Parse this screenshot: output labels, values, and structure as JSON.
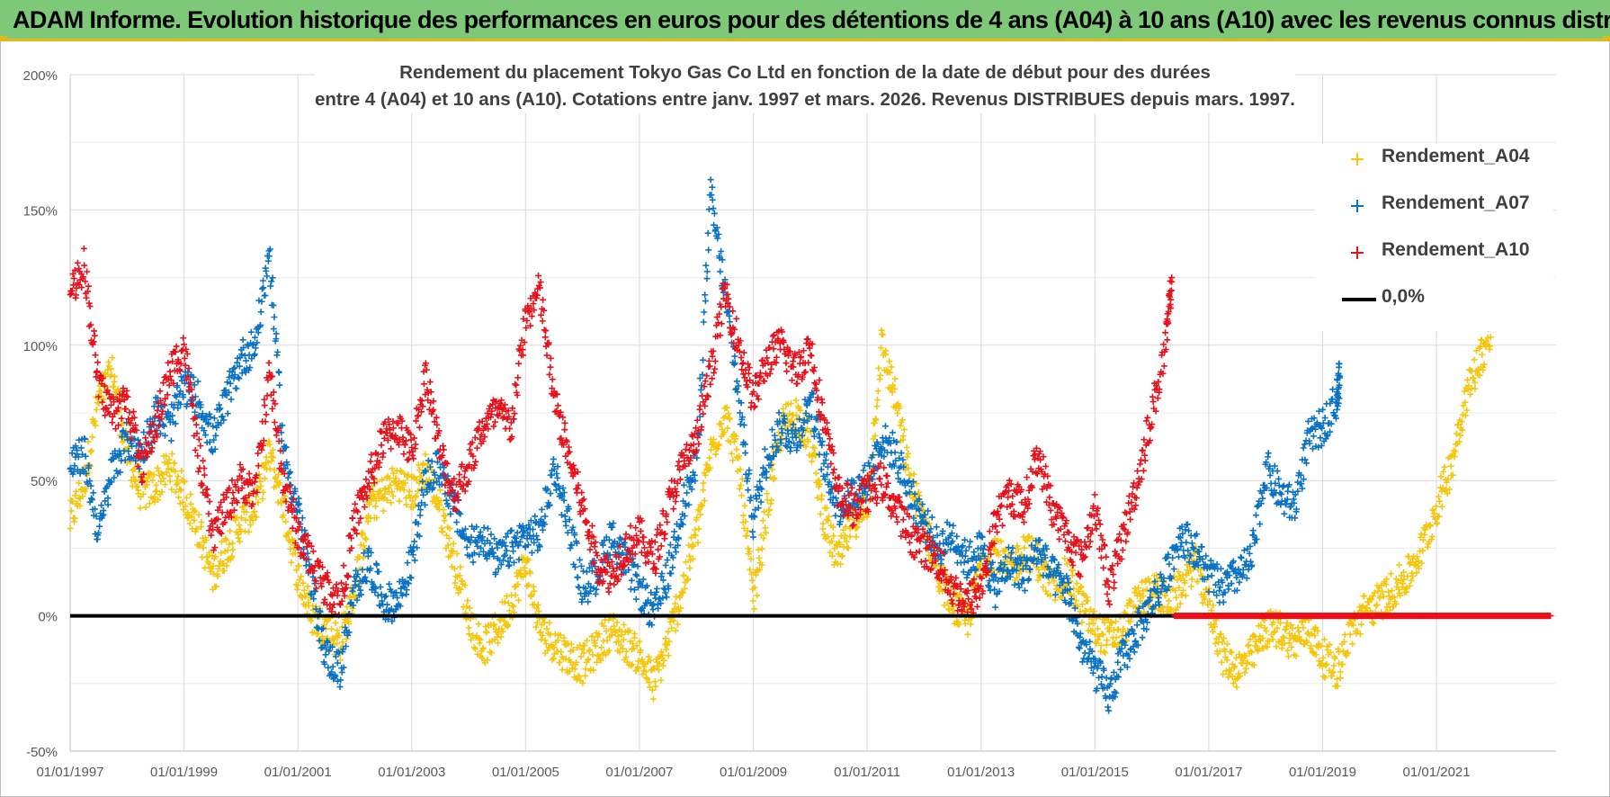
{
  "header": {
    "title": "ADAM Informe. Evolution historique des performances en euros pour des détentions de 4 ans (A04) à 10 ans (A10) avec les revenus connus distribués"
  },
  "colors": {
    "banner": "#7dc978",
    "banner_accent": "#e0b91a",
    "A04": "#f5c60c",
    "A07": "#0a72c4",
    "A10": "#e8101a",
    "zero_line": "#000000",
    "grid": "#d9d9d9"
  },
  "chart_data": {
    "type": "scatter",
    "title_lines": [
      "Rendement du placement Tokyo Gas Co Ltd en fonction de la date de début pour des durées",
      "entre 4 (A04) et 10 ans (A10).  Cotations entre janv. 1997 et mars. 2026. Revenus DISTRIBUES depuis mars. 1997."
    ],
    "xlabel": "",
    "ylabel": "",
    "x_range": [
      "1997-01-01",
      "2023-02-01"
    ],
    "ylim": [
      -50,
      200
    ],
    "y_ticks": [
      {
        "value": 200,
        "label": "200%"
      },
      {
        "value": 150,
        "label": "150%"
      },
      {
        "value": 100,
        "label": "100%"
      },
      {
        "value": 50,
        "label": "50%"
      },
      {
        "value": 0,
        "label": "0%"
      },
      {
        "value": -50,
        "label": "-50%"
      }
    ],
    "x_ticks": [
      {
        "year": 1997,
        "label": "01/01/1997"
      },
      {
        "year": 1999,
        "label": "01/01/1999"
      },
      {
        "year": 2001,
        "label": "01/01/2001"
      },
      {
        "year": 2003,
        "label": "01/01/2003"
      },
      {
        "year": 2005,
        "label": "01/01/2005"
      },
      {
        "year": 2007,
        "label": "01/01/2007"
      },
      {
        "year": 2009,
        "label": "01/01/2009"
      },
      {
        "year": 2011,
        "label": "01/01/2011"
      },
      {
        "year": 2013,
        "label": "01/01/2013"
      },
      {
        "year": 2015,
        "label": "01/01/2015"
      },
      {
        "year": 2017,
        "label": "01/01/2017"
      },
      {
        "year": 2019,
        "label": "01/01/2019"
      },
      {
        "year": 2021,
        "label": "01/01/2021"
      }
    ],
    "series": [
      {
        "name": "Rendement_A04",
        "color": "#f5c60c",
        "points": [
          [
            1997.0,
            35
          ],
          [
            1997.25,
            50
          ],
          [
            1997.5,
            80
          ],
          [
            1997.75,
            90
          ],
          [
            1998.0,
            60
          ],
          [
            1998.25,
            45
          ],
          [
            1998.5,
            48
          ],
          [
            1998.75,
            55
          ],
          [
            1999.0,
            45
          ],
          [
            1999.25,
            32
          ],
          [
            1999.5,
            15
          ],
          [
            1999.75,
            25
          ],
          [
            2000.0,
            35
          ],
          [
            2000.25,
            40
          ],
          [
            2000.5,
            60
          ],
          [
            2000.75,
            40
          ],
          [
            2001.0,
            15
          ],
          [
            2001.25,
            0
          ],
          [
            2001.5,
            -5
          ],
          [
            2001.75,
            -10
          ],
          [
            2002.0,
            10
          ],
          [
            2002.25,
            40
          ],
          [
            2002.5,
            45
          ],
          [
            2002.75,
            50
          ],
          [
            2003.0,
            45
          ],
          [
            2003.25,
            55
          ],
          [
            2003.5,
            40
          ],
          [
            2003.75,
            20
          ],
          [
            2004.0,
            0
          ],
          [
            2004.25,
            -12
          ],
          [
            2004.5,
            -5
          ],
          [
            2004.75,
            5
          ],
          [
            2005.0,
            20
          ],
          [
            2005.25,
            -5
          ],
          [
            2005.5,
            -10
          ],
          [
            2005.75,
            -15
          ],
          [
            2006.0,
            -18
          ],
          [
            2006.25,
            -12
          ],
          [
            2006.5,
            -5
          ],
          [
            2006.75,
            -10
          ],
          [
            2007.0,
            -15
          ],
          [
            2007.25,
            -25
          ],
          [
            2007.5,
            -10
          ],
          [
            2007.75,
            10
          ],
          [
            2008.0,
            30
          ],
          [
            2008.25,
            60
          ],
          [
            2008.5,
            75
          ],
          [
            2008.75,
            55
          ],
          [
            2009.0,
            5
          ],
          [
            2009.25,
            40
          ],
          [
            2009.5,
            70
          ],
          [
            2009.75,
            75
          ],
          [
            2010.0,
            65
          ],
          [
            2010.25,
            35
          ],
          [
            2010.5,
            20
          ],
          [
            2010.75,
            35
          ],
          [
            2011.0,
            40
          ],
          [
            2011.25,
            100
          ],
          [
            2011.5,
            80
          ],
          [
            2011.75,
            50
          ],
          [
            2012.0,
            35
          ],
          [
            2012.25,
            15
          ],
          [
            2012.5,
            5
          ],
          [
            2012.75,
            -3
          ],
          [
            2013.0,
            20
          ],
          [
            2013.25,
            25
          ],
          [
            2013.5,
            15
          ],
          [
            2013.75,
            25
          ],
          [
            2014.0,
            20
          ],
          [
            2014.25,
            10
          ],
          [
            2014.5,
            15
          ],
          [
            2014.75,
            5
          ],
          [
            2015.0,
            -5
          ],
          [
            2015.25,
            -8
          ],
          [
            2015.5,
            -5
          ],
          [
            2015.75,
            5
          ],
          [
            2016.0,
            10
          ],
          [
            2016.25,
            5
          ],
          [
            2016.5,
            10
          ],
          [
            2016.75,
            20
          ],
          [
            2017.0,
            5
          ],
          [
            2017.25,
            -15
          ],
          [
            2017.5,
            -20
          ],
          [
            2017.75,
            -15
          ],
          [
            2018.0,
            -5
          ],
          [
            2018.25,
            -5
          ],
          [
            2018.5,
            -10
          ],
          [
            2018.75,
            -5
          ],
          [
            2019.0,
            -15
          ],
          [
            2019.25,
            -20
          ],
          [
            2019.5,
            -5
          ],
          [
            2019.75,
            2
          ],
          [
            2020.0,
            5
          ],
          [
            2020.25,
            10
          ],
          [
            2020.5,
            15
          ],
          [
            2020.75,
            25
          ],
          [
            2021.0,
            40
          ],
          [
            2021.25,
            55
          ],
          [
            2021.5,
            80
          ],
          [
            2021.75,
            95
          ],
          [
            2021.95,
            103
          ]
        ]
      },
      {
        "name": "Rendement_A07",
        "color": "#0a72c4",
        "points": [
          [
            1997.0,
            55
          ],
          [
            1997.25,
            60
          ],
          [
            1997.5,
            30
          ],
          [
            1997.75,
            55
          ],
          [
            1998.0,
            65
          ],
          [
            1998.25,
            60
          ],
          [
            1998.5,
            75
          ],
          [
            1998.75,
            70
          ],
          [
            1999.0,
            85
          ],
          [
            1999.25,
            80
          ],
          [
            1999.5,
            65
          ],
          [
            1999.75,
            80
          ],
          [
            2000.0,
            95
          ],
          [
            2000.25,
            100
          ],
          [
            2000.5,
            135
          ],
          [
            2000.75,
            60
          ],
          [
            2001.0,
            40
          ],
          [
            2001.25,
            10
          ],
          [
            2001.5,
            -15
          ],
          [
            2001.75,
            -20
          ],
          [
            2002.0,
            10
          ],
          [
            2002.25,
            20
          ],
          [
            2002.5,
            5
          ],
          [
            2002.75,
            5
          ],
          [
            2003.0,
            20
          ],
          [
            2003.25,
            50
          ],
          [
            2003.5,
            55
          ],
          [
            2003.75,
            40
          ],
          [
            2004.0,
            25
          ],
          [
            2004.25,
            30
          ],
          [
            2004.5,
            20
          ],
          [
            2004.75,
            25
          ],
          [
            2005.0,
            30
          ],
          [
            2005.25,
            30
          ],
          [
            2005.5,
            55
          ],
          [
            2005.75,
            35
          ],
          [
            2006.0,
            10
          ],
          [
            2006.25,
            15
          ],
          [
            2006.5,
            30
          ],
          [
            2006.75,
            20
          ],
          [
            2007.0,
            10
          ],
          [
            2007.25,
            0
          ],
          [
            2007.5,
            15
          ],
          [
            2007.75,
            40
          ],
          [
            2008.0,
            55
          ],
          [
            2008.25,
            155
          ],
          [
            2008.5,
            120
          ],
          [
            2008.75,
            80
          ],
          [
            2009.0,
            35
          ],
          [
            2009.25,
            60
          ],
          [
            2009.5,
            70
          ],
          [
            2009.75,
            65
          ],
          [
            2010.0,
            80
          ],
          [
            2010.25,
            55
          ],
          [
            2010.5,
            40
          ],
          [
            2010.75,
            45
          ],
          [
            2011.0,
            50
          ],
          [
            2011.25,
            65
          ],
          [
            2011.5,
            60
          ],
          [
            2011.75,
            45
          ],
          [
            2012.0,
            35
          ],
          [
            2012.25,
            25
          ],
          [
            2012.5,
            30
          ],
          [
            2012.75,
            20
          ],
          [
            2013.0,
            25
          ],
          [
            2013.25,
            10
          ],
          [
            2013.5,
            20
          ],
          [
            2013.75,
            15
          ],
          [
            2014.0,
            25
          ],
          [
            2014.25,
            15
          ],
          [
            2014.5,
            10
          ],
          [
            2014.75,
            -10
          ],
          [
            2015.0,
            -20
          ],
          [
            2015.25,
            -30
          ],
          [
            2015.5,
            -15
          ],
          [
            2015.75,
            -5
          ],
          [
            2016.0,
            5
          ],
          [
            2016.25,
            15
          ],
          [
            2016.5,
            30
          ],
          [
            2016.75,
            25
          ],
          [
            2017.0,
            15
          ],
          [
            2017.25,
            10
          ],
          [
            2017.5,
            15
          ],
          [
            2017.75,
            20
          ],
          [
            2018.0,
            55
          ],
          [
            2018.25,
            45
          ],
          [
            2018.5,
            40
          ],
          [
            2018.75,
            65
          ],
          [
            2019.0,
            70
          ],
          [
            2019.25,
            80
          ],
          [
            2019.3,
            88
          ]
        ]
      },
      {
        "name": "Rendement_A10",
        "color": "#e8101a",
        "points": [
          [
            1997.0,
            120
          ],
          [
            1997.25,
            130
          ],
          [
            1997.5,
            85
          ],
          [
            1997.75,
            75
          ],
          [
            1998.0,
            80
          ],
          [
            1998.25,
            55
          ],
          [
            1998.5,
            70
          ],
          [
            1998.75,
            90
          ],
          [
            1999.0,
            100
          ],
          [
            1999.25,
            60
          ],
          [
            1999.5,
            30
          ],
          [
            1999.75,
            40
          ],
          [
            2000.0,
            50
          ],
          [
            2000.25,
            45
          ],
          [
            2000.5,
            90
          ],
          [
            2000.75,
            50
          ],
          [
            2001.0,
            30
          ],
          [
            2001.25,
            20
          ],
          [
            2001.5,
            10
          ],
          [
            2001.75,
            5
          ],
          [
            2002.0,
            35
          ],
          [
            2002.25,
            50
          ],
          [
            2002.5,
            65
          ],
          [
            2002.75,
            70
          ],
          [
            2003.0,
            60
          ],
          [
            2003.25,
            90
          ],
          [
            2003.5,
            60
          ],
          [
            2003.75,
            45
          ],
          [
            2004.0,
            55
          ],
          [
            2004.25,
            70
          ],
          [
            2004.5,
            75
          ],
          [
            2004.75,
            70
          ],
          [
            2005.0,
            110
          ],
          [
            2005.25,
            120
          ],
          [
            2005.5,
            80
          ],
          [
            2005.75,
            60
          ],
          [
            2006.0,
            40
          ],
          [
            2006.25,
            20
          ],
          [
            2006.5,
            15
          ],
          [
            2006.75,
            25
          ],
          [
            2007.0,
            30
          ],
          [
            2007.25,
            20
          ],
          [
            2007.5,
            40
          ],
          [
            2007.75,
            55
          ],
          [
            2008.0,
            65
          ],
          [
            2008.25,
            90
          ],
          [
            2008.5,
            120
          ],
          [
            2008.75,
            100
          ],
          [
            2009.0,
            80
          ],
          [
            2009.25,
            95
          ],
          [
            2009.5,
            100
          ],
          [
            2009.75,
            90
          ],
          [
            2010.0,
            100
          ],
          [
            2010.25,
            70
          ],
          [
            2010.5,
            45
          ],
          [
            2010.75,
            40
          ],
          [
            2011.0,
            45
          ],
          [
            2011.25,
            50
          ],
          [
            2011.5,
            40
          ],
          [
            2011.75,
            30
          ],
          [
            2012.0,
            25
          ],
          [
            2012.25,
            20
          ],
          [
            2012.5,
            10
          ],
          [
            2012.75,
            5
          ],
          [
            2013.0,
            10
          ],
          [
            2013.25,
            35
          ],
          [
            2013.5,
            45
          ],
          [
            2013.75,
            40
          ],
          [
            2014.0,
            60
          ],
          [
            2014.25,
            40
          ],
          [
            2014.5,
            30
          ],
          [
            2014.75,
            20
          ],
          [
            2015.0,
            40
          ],
          [
            2015.25,
            10
          ],
          [
            2015.5,
            30
          ],
          [
            2015.75,
            50
          ],
          [
            2016.0,
            75
          ],
          [
            2016.25,
            100
          ],
          [
            2016.35,
            125
          ]
        ]
      },
      {
        "name": "0,0%",
        "color": "#000000",
        "type": "line",
        "points": [
          [
            1997.0,
            0
          ],
          [
            2023.0,
            0
          ]
        ]
      }
    ],
    "notes_zero_overlay": {
      "A10_zero_from": 2016.4,
      "A10_zero_to": 2023.0
    }
  },
  "legend": {
    "items": [
      {
        "label": "Rendement_A04",
        "color": "#f5c60c"
      },
      {
        "label": "Rendement_A07",
        "color": "#0a72c4"
      },
      {
        "label": "Rendement_A10",
        "color": "#e8101a"
      },
      {
        "label": "0,0%",
        "color": "#000000"
      }
    ]
  }
}
